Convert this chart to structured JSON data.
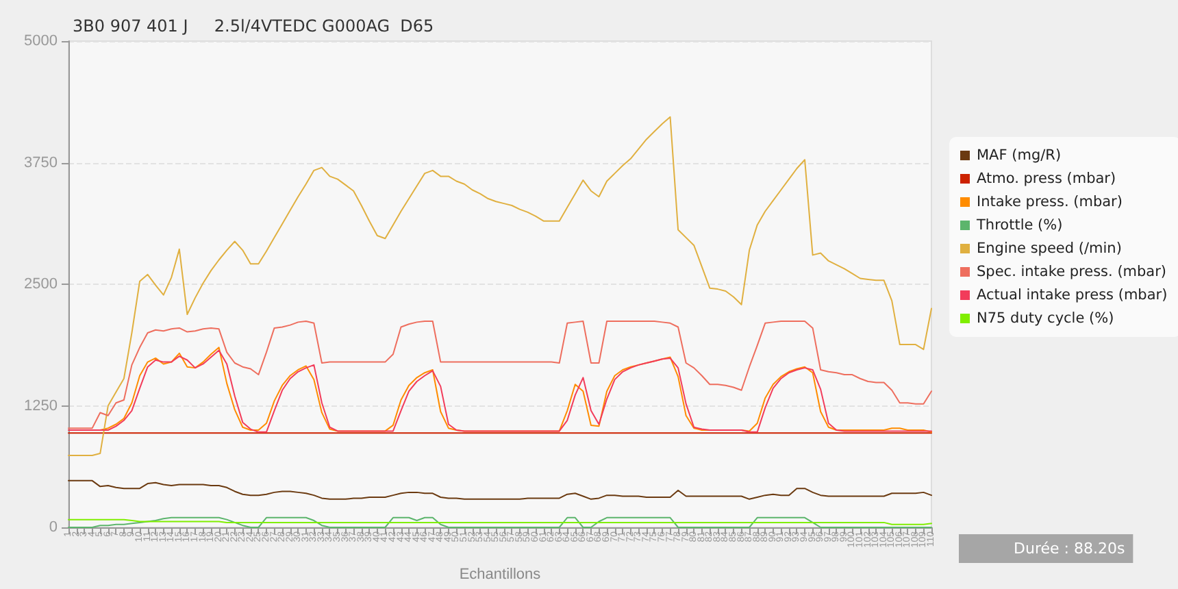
{
  "chart_data": {
    "type": "line",
    "title": "3B0 907 401 J     2.5l/4VTEDC G000AG  D65",
    "xlabel": "Echantillons",
    "annotations": [
      "Durée : 88.20s"
    ],
    "categories": [
      "1",
      "2",
      "3",
      "4",
      "5",
      "6",
      "7",
      "8",
      "9",
      "10",
      "11",
      "12",
      "13",
      "14",
      "15",
      "16",
      "17",
      "18",
      "19",
      "20",
      "21",
      "22",
      "23",
      "24",
      "25",
      "26",
      "27",
      "28",
      "29",
      "30",
      "31",
      "32",
      "33",
      "34",
      "35",
      "36",
      "37",
      "38",
      "39",
      "40",
      "41",
      "42",
      "43",
      "44",
      "45",
      "46",
      "47",
      "48",
      "49",
      "50",
      "51",
      "52",
      "53",
      "54",
      "55",
      "56",
      "57",
      "58",
      "59",
      "60",
      "61",
      "62",
      "63",
      "64",
      "65",
      "66",
      "67",
      "68",
      "69",
      "70",
      "71",
      "72",
      "73",
      "74",
      "75",
      "76",
      "77",
      "78",
      "79",
      "80",
      "81",
      "82",
      "83",
      "84",
      "85",
      "86",
      "87",
      "88",
      "89",
      "90",
      "91",
      "92",
      "93",
      "94",
      "95",
      "96",
      "97",
      "98",
      "99",
      "100",
      "101",
      "102",
      "103",
      "104",
      "105",
      "106",
      "107",
      "108",
      "109",
      "110"
    ],
    "ylim": [
      0,
      5000
    ],
    "yticks": [
      0,
      1250,
      2500,
      3750,
      5000
    ],
    "grid": "y",
    "legend": "right",
    "line_style": "solid",
    "series": [
      {
        "name": "MAF (mg/R)",
        "color": "#6b3a10",
        "values": [
          480,
          480,
          480,
          480,
          420,
          430,
          410,
          400,
          400,
          400,
          450,
          460,
          440,
          430,
          440,
          440,
          440,
          440,
          430,
          430,
          410,
          370,
          340,
          330,
          330,
          340,
          360,
          370,
          370,
          360,
          350,
          330,
          300,
          290,
          290,
          290,
          300,
          300,
          310,
          310,
          310,
          330,
          350,
          360,
          360,
          350,
          350,
          310,
          300,
          300,
          290,
          290,
          290,
          290,
          290,
          290,
          290,
          290,
          300,
          300,
          300,
          300,
          300,
          340,
          350,
          320,
          290,
          300,
          330,
          330,
          320,
          320,
          320,
          310,
          310,
          310,
          310,
          380,
          320,
          320,
          320,
          320,
          320,
          320,
          320,
          320,
          290,
          310,
          330,
          340,
          330,
          330,
          400,
          400,
          360,
          330,
          320,
          320,
          320,
          320,
          320,
          320,
          320,
          320,
          350,
          350,
          350,
          350,
          360,
          330
        ]
      },
      {
        "name": "Atmo. press (mbar)",
        "color": "#cc2200",
        "values": [
          970,
          970,
          970,
          970,
          970,
          970,
          970,
          970,
          970,
          970,
          970,
          970,
          970,
          970,
          970,
          970,
          970,
          970,
          970,
          970,
          970,
          970,
          970,
          970,
          970,
          970,
          970,
          970,
          970,
          970,
          970,
          970,
          970,
          970,
          970,
          970,
          970,
          970,
          970,
          970,
          970,
          970,
          970,
          970,
          970,
          970,
          970,
          970,
          970,
          970,
          970,
          970,
          970,
          970,
          970,
          970,
          970,
          970,
          970,
          970,
          970,
          970,
          970,
          970,
          970,
          970,
          970,
          970,
          970,
          970,
          970,
          970,
          970,
          970,
          970,
          970,
          970,
          970,
          970,
          970,
          970,
          970,
          970,
          970,
          970,
          970,
          970,
          970,
          970,
          970,
          970,
          970,
          970,
          970,
          970,
          970,
          970,
          970,
          970,
          970,
          970,
          970,
          970,
          970,
          970,
          970,
          970,
          970,
          970,
          970
        ]
      },
      {
        "name": "Intake press. (mbar)",
        "color": "#ff8c00",
        "values": [
          null,
          null,
          null,
          1000,
          1000,
          1020,
          1060,
          1120,
          1280,
          1560,
          1700,
          1740,
          1680,
          1700,
          1790,
          1650,
          1640,
          1700,
          1780,
          1850,
          1480,
          1210,
          1030,
          1000,
          1000,
          1070,
          1300,
          1460,
          1560,
          1620,
          1660,
          1520,
          1180,
          1010,
          990,
          990,
          990,
          990,
          990,
          990,
          990,
          1050,
          1310,
          1460,
          1540,
          1590,
          1620,
          1190,
          1020,
          1000,
          990,
          990,
          990,
          990,
          990,
          990,
          990,
          990,
          990,
          990,
          990,
          990,
          990,
          1200,
          1470,
          1400,
          1050,
          1040,
          1400,
          1560,
          1620,
          1650,
          1670,
          1690,
          1710,
          1730,
          1750,
          1550,
          1150,
          1020,
          1000,
          1000,
          1000,
          1000,
          1000,
          1000,
          990,
          1070,
          1330,
          1470,
          1550,
          1600,
          1630,
          1650,
          1590,
          1190,
          1030,
          1000,
          1000,
          1000,
          1000,
          1000,
          1000,
          1000,
          1020,
          1020,
          1000,
          1000,
          1000,
          980
        ]
      },
      {
        "name": "Throttle (%)",
        "color": "#5cb56c",
        "values": [
          0,
          0,
          0,
          0,
          20,
          20,
          30,
          30,
          40,
          50,
          60,
          70,
          90,
          100,
          100,
          100,
          100,
          100,
          100,
          100,
          80,
          50,
          20,
          0,
          0,
          100,
          100,
          100,
          100,
          100,
          100,
          70,
          20,
          0,
          0,
          0,
          0,
          0,
          0,
          0,
          0,
          100,
          100,
          100,
          70,
          100,
          100,
          30,
          0,
          0,
          0,
          0,
          0,
          0,
          0,
          0,
          0,
          0,
          0,
          0,
          0,
          0,
          0,
          100,
          100,
          0,
          0,
          60,
          100,
          100,
          100,
          100,
          100,
          100,
          100,
          100,
          100,
          0,
          0,
          0,
          0,
          0,
          0,
          0,
          0,
          0,
          0,
          100,
          100,
          100,
          100,
          100,
          100,
          100,
          50,
          0,
          0,
          0,
          0,
          0,
          0,
          0,
          0,
          0,
          0,
          0,
          0,
          0,
          0,
          0
        ]
      },
      {
        "name": "Engine speed (/min)",
        "color": "#e0b040",
        "values": [
          740,
          740,
          740,
          740,
          760,
          1250,
          1390,
          1530,
          2000,
          2530,
          2600,
          2490,
          2390,
          2570,
          2860,
          2190,
          2360,
          2510,
          2640,
          2750,
          2850,
          2940,
          2850,
          2710,
          2710,
          2840,
          2980,
          3120,
          3260,
          3400,
          3530,
          3670,
          3700,
          3610,
          3580,
          3520,
          3460,
          3310,
          3150,
          3000,
          2970,
          3110,
          3250,
          3380,
          3510,
          3640,
          3670,
          3610,
          3610,
          3560,
          3530,
          3470,
          3430,
          3380,
          3350,
          3330,
          3310,
          3270,
          3240,
          3200,
          3150,
          3150,
          3150,
          3290,
          3430,
          3570,
          3460,
          3400,
          3560,
          3640,
          3720,
          3790,
          3890,
          3990,
          4070,
          4150,
          4220,
          3060,
          2980,
          2900,
          2680,
          2460,
          2450,
          2430,
          2370,
          2290,
          2850,
          3110,
          3250,
          3360,
          3470,
          3580,
          3690,
          3780,
          2800,
          2820,
          2740,
          2700,
          2660,
          2610,
          2560,
          2550,
          2540,
          2540,
          2330,
          1880,
          1880,
          1880,
          1830,
          2250
        ]
      },
      {
        "name": "Spec. intake press. (mbar)",
        "color": "#ee6e5e",
        "values": [
          1020,
          1020,
          1020,
          1020,
          1180,
          1150,
          1280,
          1310,
          1670,
          1850,
          2000,
          2030,
          2020,
          2040,
          2050,
          2010,
          2020,
          2040,
          2050,
          2040,
          1800,
          1690,
          1650,
          1630,
          1570,
          1800,
          2050,
          2060,
          2080,
          2110,
          2120,
          2100,
          1690,
          1700,
          1700,
          1700,
          1700,
          1700,
          1700,
          1700,
          1700,
          1780,
          2060,
          2090,
          2110,
          2120,
          2120,
          1700,
          1700,
          1700,
          1700,
          1700,
          1700,
          1700,
          1700,
          1700,
          1700,
          1700,
          1700,
          1700,
          1700,
          1700,
          1690,
          2100,
          2110,
          2120,
          1690,
          1690,
          2120,
          2120,
          2120,
          2120,
          2120,
          2120,
          2120,
          2110,
          2100,
          2060,
          1690,
          1640,
          1560,
          1470,
          1470,
          1460,
          1440,
          1410,
          1650,
          1870,
          2100,
          2110,
          2120,
          2120,
          2120,
          2120,
          2050,
          1620,
          1600,
          1590,
          1570,
          1570,
          1530,
          1500,
          1490,
          1490,
          1410,
          1280,
          1280,
          1270,
          1270,
          1400
        ]
      },
      {
        "name": "Actual intake press (mbar)",
        "color": "#f23c5a",
        "values": [
          1000,
          1000,
          1000,
          1000,
          1000,
          1000,
          1040,
          1100,
          1200,
          1430,
          1650,
          1720,
          1700,
          1700,
          1760,
          1720,
          1640,
          1680,
          1750,
          1820,
          1680,
          1350,
          1080,
          1010,
          980,
          980,
          1200,
          1410,
          1530,
          1600,
          1640,
          1670,
          1280,
          1030,
          990,
          990,
          990,
          990,
          990,
          990,
          990,
          990,
          1200,
          1400,
          1500,
          1560,
          1610,
          1450,
          1060,
          1000,
          990,
          990,
          990,
          990,
          990,
          990,
          990,
          990,
          990,
          990,
          990,
          990,
          990,
          1100,
          1360,
          1540,
          1200,
          1060,
          1320,
          1520,
          1600,
          1640,
          1670,
          1690,
          1710,
          1730,
          1740,
          1640,
          1270,
          1030,
          1010,
          1000,
          1000,
          1000,
          1000,
          1000,
          980,
          980,
          1230,
          1430,
          1530,
          1590,
          1620,
          1640,
          1620,
          1420,
          1070,
          1000,
          990,
          990,
          990,
          990,
          990,
          990,
          990,
          990,
          990,
          990,
          990,
          990
        ]
      },
      {
        "name": "N75 duty cycle (%)",
        "color": "#80ee00",
        "values": [
          80,
          80,
          80,
          80,
          80,
          80,
          80,
          80,
          70,
          60,
          60,
          60,
          60,
          60,
          60,
          60,
          60,
          60,
          60,
          60,
          50,
          50,
          50,
          50,
          50,
          50,
          50,
          50,
          50,
          50,
          50,
          50,
          50,
          50,
          50,
          50,
          50,
          50,
          50,
          50,
          50,
          50,
          50,
          50,
          50,
          50,
          50,
          50,
          50,
          50,
          50,
          50,
          50,
          50,
          50,
          50,
          50,
          50,
          50,
          50,
          50,
          50,
          50,
          50,
          50,
          50,
          50,
          50,
          50,
          50,
          50,
          50,
          50,
          50,
          50,
          50,
          50,
          50,
          50,
          50,
          50,
          50,
          50,
          50,
          50,
          50,
          50,
          50,
          50,
          50,
          50,
          50,
          50,
          50,
          50,
          50,
          50,
          50,
          50,
          50,
          50,
          50,
          50,
          50,
          30,
          30,
          30,
          30,
          30,
          40
        ]
      }
    ]
  }
}
